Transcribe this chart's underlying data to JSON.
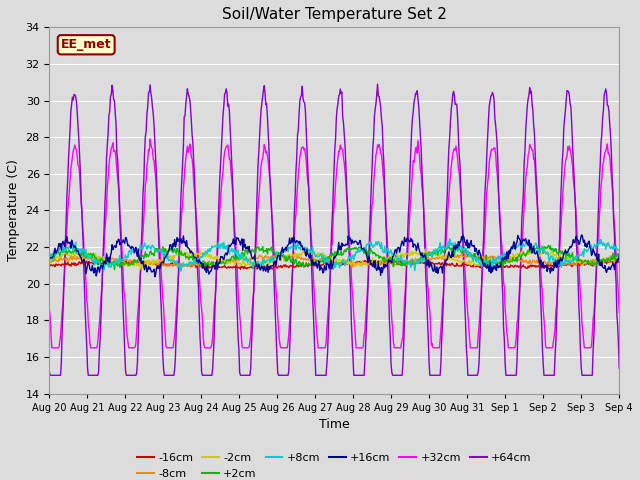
{
  "title": "Soil/Water Temperature Set 2",
  "xlabel": "Time",
  "ylabel": "Temperature (C)",
  "ylim": [
    14,
    34
  ],
  "yticks": [
    14,
    16,
    18,
    20,
    22,
    24,
    26,
    28,
    30,
    32,
    34
  ],
  "plot_bg_color": "#dcdcdc",
  "annotation_text": "EE_met",
  "annotation_bg": "#ffffcc",
  "annotation_border": "#8b0000",
  "series": [
    {
      "label": "-16cm",
      "color": "#cc0000",
      "lw": 1.0
    },
    {
      "label": "-8cm",
      "color": "#ff8800",
      "lw": 1.0
    },
    {
      "label": "-2cm",
      "color": "#cccc00",
      "lw": 1.0
    },
    {
      "label": "+2cm",
      "color": "#00bb00",
      "lw": 1.0
    },
    {
      "label": "+8cm",
      "color": "#00cccc",
      "lw": 1.0
    },
    {
      "label": "+16cm",
      "color": "#000099",
      "lw": 1.0
    },
    {
      "label": "+32cm",
      "color": "#ff00ff",
      "lw": 1.0
    },
    {
      "label": "+64cm",
      "color": "#8800cc",
      "lw": 1.0
    }
  ],
  "xtick_labels": [
    "Aug 20",
    "Aug 21",
    "Aug 22",
    "Aug 23",
    "Aug 24",
    "Aug 25",
    "Aug 26",
    "Aug 27",
    "Aug 28",
    "Aug 29",
    "Aug 30",
    "Aug 31",
    "Sep 1",
    "Sep 2",
    "Sep 3",
    "Sep 4"
  ],
  "num_days": 15,
  "points_per_day": 48
}
